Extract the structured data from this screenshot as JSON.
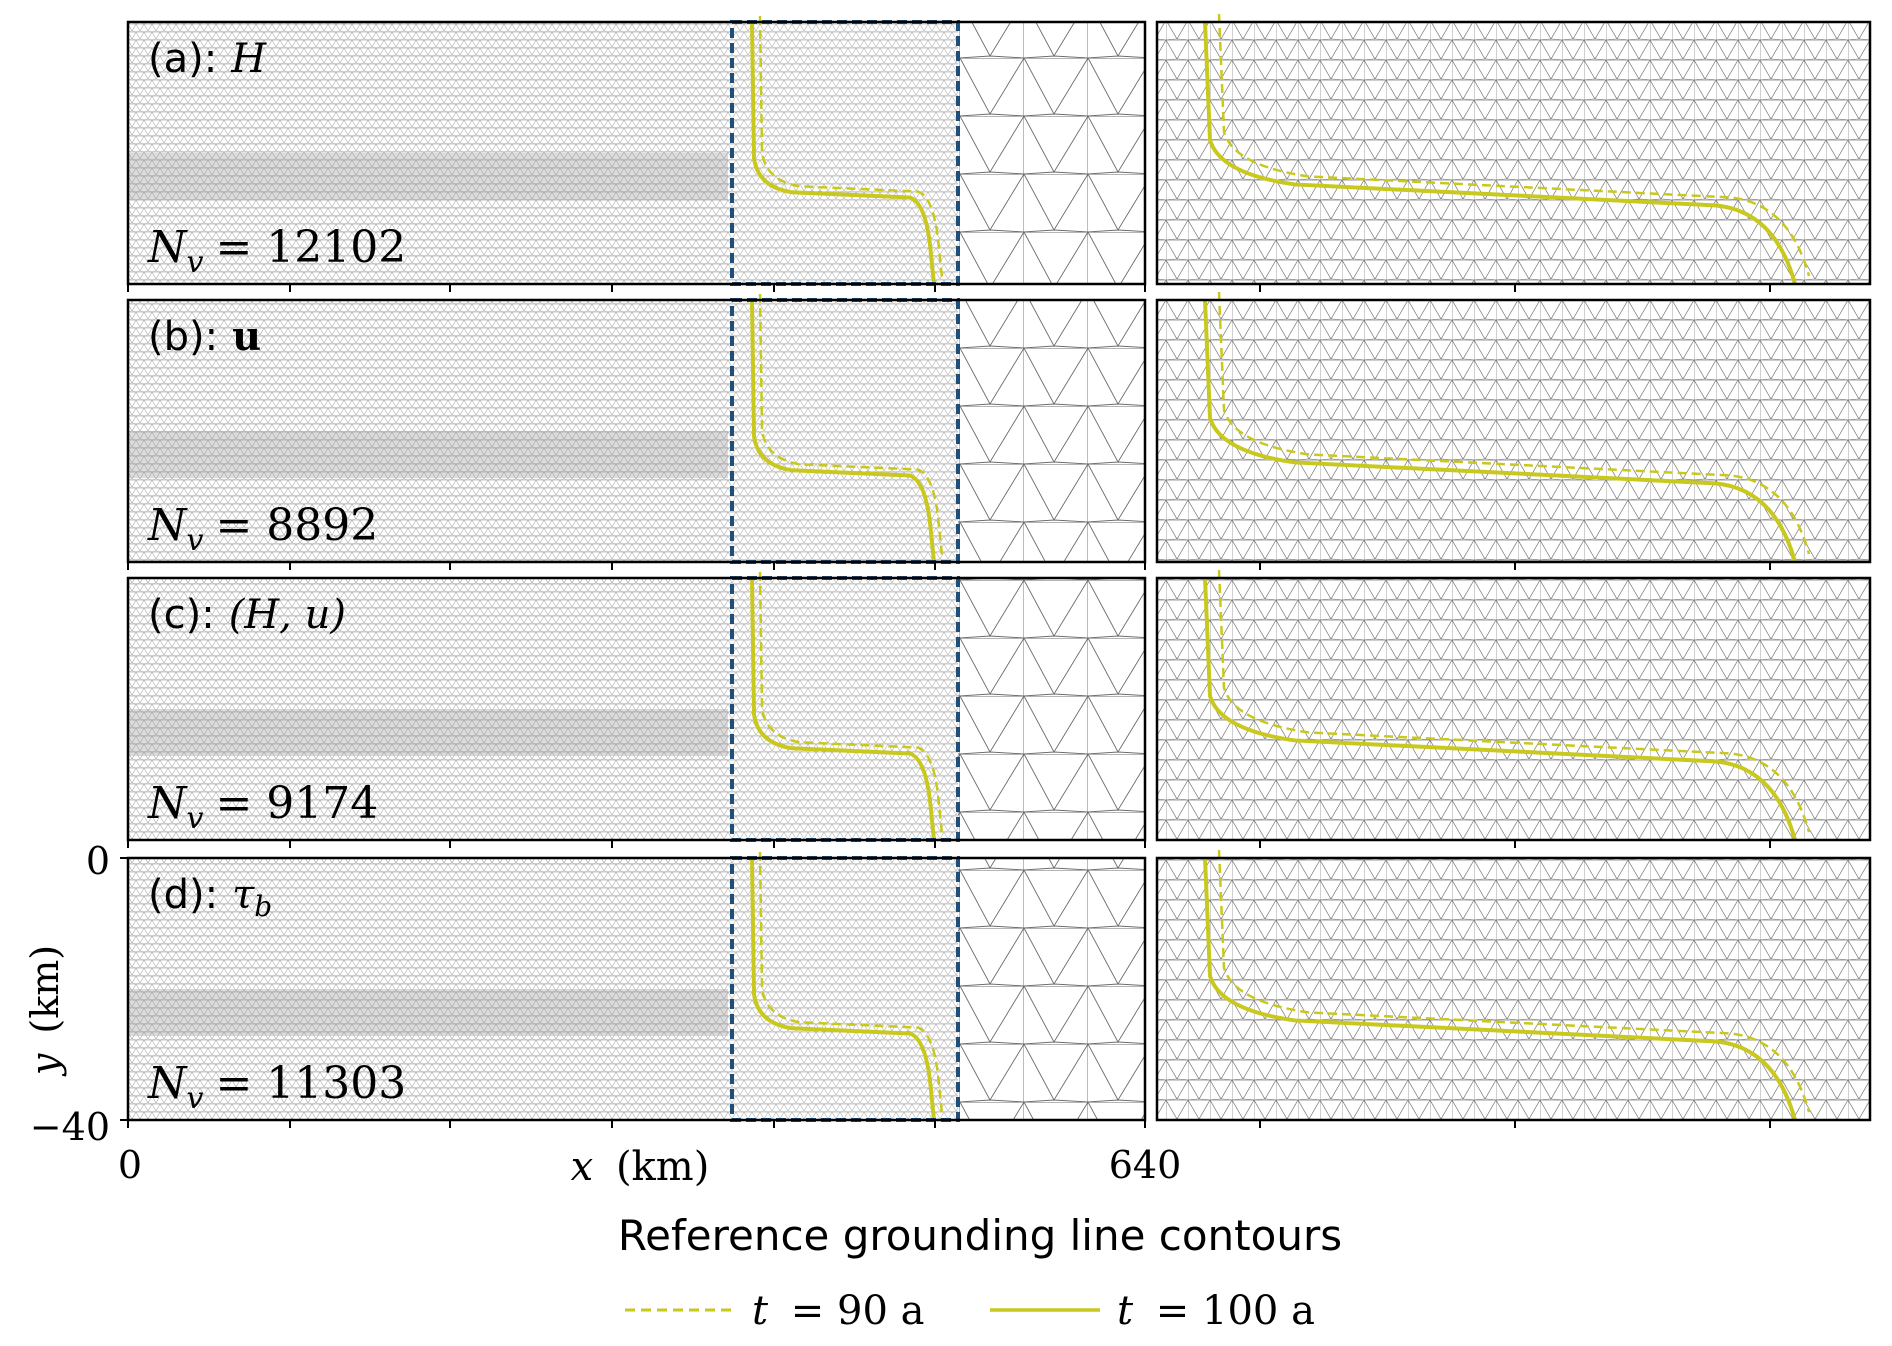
{
  "figure": {
    "panels": [
      {
        "id": "a",
        "label": "(a):",
        "variable": "H",
        "nv_label": "N",
        "nv_sub": "v",
        "nv_value": "= 12102"
      },
      {
        "id": "b",
        "label": "(b):",
        "variable": "u",
        "nv_label": "N",
        "nv_sub": "v",
        "nv_value": "= 8892"
      },
      {
        "id": "c",
        "label": "(c):",
        "variable": "(H, u)",
        "nv_label": "N",
        "nv_sub": "v",
        "nv_value": "= 9174"
      },
      {
        "id": "d",
        "label": "(d):",
        "variable": "τ",
        "variable_sub": "b",
        "nv_label": "N",
        "nv_sub": "v",
        "nv_value": "= 11303"
      }
    ],
    "axes": {
      "x_label_var": "x",
      "x_label_unit": "(km)",
      "y_label_var": "y",
      "y_label_unit": "(km)",
      "x_tick_0": "0",
      "x_tick_640": "640",
      "y_tick_0": "0",
      "y_tick_neg40": "−40"
    },
    "legend": {
      "title": "Reference grounding line contours",
      "entries": [
        {
          "var": "t",
          "text": "= 90 a",
          "style": "dashed"
        },
        {
          "var": "t",
          "text": "= 100 a",
          "style": "solid"
        }
      ]
    },
    "colors": {
      "contour": "#c8c81e",
      "zoom_box": "#1f4e79",
      "mesh": "#555555",
      "frame": "#000000"
    }
  }
}
